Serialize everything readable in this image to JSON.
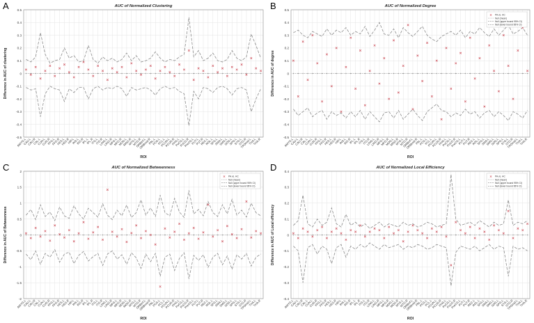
{
  "figure": {
    "roi_labels": [
      "AMYG.L",
      "CAU.L",
      "CAU.R",
      "CAL.L",
      "CUN.L",
      "CUN.R",
      "FFG.L",
      "FFG.R",
      "HES.L",
      "HES.R",
      "HIP.L",
      "INS.L",
      "INS.R",
      "IPL.L",
      "IPL.R",
      "ITG.L",
      "ITG.R",
      "LING.L",
      "LING.R",
      "MFG.L",
      "MFG.R",
      "MOG.L",
      "MOG.R",
      "MTG.L",
      "MTG.R",
      "ORBinf.L",
      "ORBmid.R",
      "PAL.L",
      "PCG.L",
      "PCL.L",
      "PCUN.L",
      "PCUN.R",
      "PHG.L",
      "PoCG.L",
      "PoCG.R",
      "PreCG.L",
      "PUT.L",
      "PUT.R",
      "REC.L",
      "ROL.L",
      "SFG.L",
      "SMA.L",
      "SMG.L",
      "SOG.L",
      "SPG.L",
      "STG.L",
      "STG.R",
      "TPOmid.L",
      "THA.L",
      "THA.R"
    ]
  },
  "chart_data": [
    {
      "panel": "A",
      "type": "line",
      "title": "AUC of Normalized Clustering",
      "xlabel": "ROI",
      "ylabel": "Difference in AUC of clustering",
      "ylim": [
        -0.5,
        0.5
      ],
      "yticks": [
        -0.5,
        -0.4,
        -0.3,
        -0.2,
        -0.1,
        0,
        0.1,
        0.2,
        0.3,
        0.4,
        0.5
      ],
      "grid": true,
      "legend": null,
      "series": [
        {
          "name": "Null (upper bound 95% CI)",
          "style": "dashed",
          "values": [
            0.11,
            0.09,
            0.13,
            0.32,
            0.15,
            0.08,
            0.1,
            0.11,
            0.2,
            0.12,
            0.14,
            0.09,
            0.1,
            0.22,
            0.11,
            0.08,
            0.13,
            0.1,
            0.12,
            0.09,
            0.11,
            0.16,
            0.1,
            0.14,
            0.09,
            0.1,
            0.12,
            0.17,
            0.12,
            0.09,
            0.11,
            0.1,
            0.13,
            0.15,
            0.44,
            0.13,
            0.18,
            0.1,
            0.12,
            0.16,
            0.1,
            0.09,
            0.11,
            0.18,
            0.12,
            0.1,
            0.13,
            0.31,
            0.22,
            0.12
          ]
        },
        {
          "name": "Null (mean)",
          "style": "dotted",
          "values": [
            0,
            0,
            0,
            0,
            0,
            0,
            0,
            0,
            0,
            0,
            0,
            0,
            0,
            0,
            0,
            0,
            0,
            0,
            0,
            0,
            0,
            0,
            0,
            0,
            0,
            0,
            0,
            0,
            0,
            0,
            0,
            0,
            0,
            0,
            0,
            0,
            0,
            0,
            0,
            0,
            0,
            0,
            0,
            0,
            0,
            0,
            0,
            0,
            0,
            0
          ]
        },
        {
          "name": "Null (lower bound 95% CI)",
          "style": "dashed",
          "values": [
            -0.11,
            -0.13,
            -0.12,
            -0.34,
            -0.16,
            -0.1,
            -0.12,
            -0.13,
            -0.22,
            -0.12,
            -0.15,
            -0.11,
            -0.11,
            -0.2,
            -0.12,
            -0.1,
            -0.13,
            -0.11,
            -0.12,
            -0.1,
            -0.12,
            -0.18,
            -0.11,
            -0.13,
            -0.12,
            -0.11,
            -0.13,
            -0.17,
            -0.12,
            -0.1,
            -0.12,
            -0.11,
            -0.14,
            -0.16,
            -0.41,
            -0.14,
            -0.2,
            -0.11,
            -0.12,
            -0.15,
            -0.11,
            -0.1,
            -0.12,
            -0.17,
            -0.12,
            -0.11,
            -0.13,
            -0.3,
            -0.2,
            -0.12
          ]
        },
        {
          "name": "PA vs. HC",
          "style": "markers",
          "values": [
            0.03,
            -0.01,
            0.05,
            -0.04,
            0.02,
            0.06,
            -0.02,
            0.04,
            0.07,
            0.01,
            -0.03,
            0.05,
            0.09,
            0.03,
            -0.02,
            0.06,
            0.02,
            -0.05,
            0.04,
            0.01,
            0.05,
            -0.03,
            0.08,
            0.02,
            -0.01,
            0.03,
            0.06,
            -0.04,
            0.02,
            0.05,
            0.01,
            -0.02,
            0.07,
            0.03,
            0.18,
            -0.05,
            0.04,
            0.02,
            -0.03,
            0.06,
            0.01,
            0.04,
            -0.02,
            0.05,
            0.03,
            0.07,
            -0.01,
            0.12,
            0.04,
            0.02
          ]
        }
      ]
    },
    {
      "panel": "B",
      "type": "line",
      "title": "AUC of Normalized Degree",
      "xlabel": "ROI",
      "ylabel": "Difference in AUC of degree",
      "ylim": [
        -0.5,
        0.5
      ],
      "yticks": [
        -0.5,
        -0.4,
        -0.3,
        -0.2,
        -0.1,
        0,
        0.1,
        0.2,
        0.3,
        0.4,
        0.5
      ],
      "grid": true,
      "legend": "top-right",
      "series": [
        {
          "name": "Null (upper bound 95% CI)",
          "style": "dashed",
          "values": [
            0.32,
            0.34,
            0.3,
            0.28,
            0.33,
            0.31,
            0.29,
            0.35,
            0.3,
            0.34,
            0.32,
            0.36,
            0.3,
            0.33,
            0.31,
            0.37,
            0.29,
            0.34,
            0.4,
            0.31,
            0.3,
            0.35,
            0.28,
            0.36,
            0.32,
            0.29,
            0.33,
            0.37,
            0.3,
            0.27,
            0.25,
            0.29,
            0.31,
            0.33,
            0.3,
            0.34,
            0.28,
            0.33,
            0.31,
            0.36,
            0.32,
            0.29,
            0.35,
            0.3,
            0.34,
            0.38,
            0.31,
            0.33,
            0.36,
            0.3
          ]
        },
        {
          "name": "Null (mean)",
          "style": "dotted",
          "values": [
            0,
            0,
            0,
            0,
            0,
            0,
            0,
            0,
            0,
            0,
            0,
            0,
            0,
            0,
            0,
            0,
            0,
            0,
            0,
            0,
            0,
            0,
            0,
            0,
            0,
            0,
            0,
            0,
            0,
            0,
            0,
            0,
            0,
            0,
            0,
            0,
            0,
            0,
            0,
            0,
            0,
            0,
            0,
            0,
            0,
            0,
            0,
            0,
            0,
            0
          ]
        },
        {
          "name": "Null (lower bound 95% CI)",
          "style": "dashed",
          "values": [
            -0.28,
            -0.33,
            -0.3,
            -0.27,
            -0.34,
            -0.31,
            -0.29,
            -0.36,
            -0.3,
            -0.33,
            -0.31,
            -0.35,
            -0.3,
            -0.34,
            -0.29,
            -0.36,
            -0.3,
            -0.34,
            -0.38,
            -0.31,
            -0.3,
            -0.35,
            -0.29,
            -0.36,
            -0.32,
            -0.28,
            -0.33,
            -0.37,
            -0.3,
            -0.27,
            -0.24,
            -0.29,
            -0.3,
            -0.34,
            -0.31,
            -0.33,
            -0.28,
            -0.32,
            -0.3,
            -0.35,
            -0.31,
            -0.29,
            -0.34,
            -0.3,
            -0.33,
            -0.37,
            -0.3,
            -0.32,
            -0.35,
            -0.29
          ]
        },
        {
          "name": "PA vs. HC",
          "style": "markers",
          "values": [
            0.1,
            -0.18,
            0.25,
            -0.05,
            0.3,
            0.08,
            -0.22,
            0.15,
            -0.1,
            0.2,
            -0.3,
            0.05,
            0.28,
            -0.12,
            0.18,
            -0.25,
            0.02,
            0.22,
            -0.08,
            0.12,
            -0.2,
            0.26,
            -0.15,
            0.06,
            0.38,
            -0.28,
            0.14,
            -0.06,
            0.24,
            -0.18,
            0.1,
            -0.36,
            0.2,
            -0.12,
            0.08,
            0.16,
            -0.22,
            0.28,
            -0.04,
            0.12,
            -0.26,
            0.22,
            0.02,
            -0.14,
            0.3,
            0.06,
            -0.2,
            0.18,
            0.36,
            0.02
          ]
        }
      ]
    },
    {
      "panel": "C",
      "type": "line",
      "title": "AUC of Normalized Betweenness",
      "xlabel": "ROI",
      "ylabel": "Difference in AUC of Betweenness",
      "ylim": [
        -2,
        2
      ],
      "yticks": [
        -2,
        -1.5,
        -1,
        -0.5,
        0,
        0.5,
        1,
        1.5,
        2
      ],
      "grid": true,
      "legend": "top-right",
      "series": [
        {
          "name": "Null (upper bound 95% CI)",
          "style": "dashed",
          "values": [
            0.62,
            0.8,
            0.48,
            0.95,
            0.58,
            0.72,
            0.45,
            0.88,
            0.6,
            0.52,
            0.92,
            0.66,
            0.5,
            0.84,
            0.7,
            0.56,
            0.98,
            0.62,
            0.48,
            0.78,
            0.6,
            0.94,
            0.55,
            0.7,
            1.1,
            0.62,
            0.85,
            0.58,
            1.25,
            0.7,
            0.6,
            1.15,
            0.72,
            0.55,
            1.4,
            0.66,
            0.8,
            0.6,
            1.05,
            0.7,
            0.58,
            0.95,
            0.66,
            1.12,
            0.62,
            0.78,
            0.56,
            1.0,
            0.7,
            0.6
          ]
        },
        {
          "name": "Null (mean)",
          "style": "dotted",
          "values": [
            0,
            0,
            0,
            0,
            0,
            0,
            0,
            0,
            0,
            0,
            0,
            0,
            0,
            0,
            0,
            0,
            0,
            0,
            0,
            0,
            0,
            0,
            0,
            0,
            0,
            0,
            0,
            0,
            0,
            0,
            0,
            0,
            0,
            0,
            0,
            0,
            0,
            0,
            0,
            0,
            0,
            0,
            0,
            0,
            0,
            0,
            0,
            0,
            0,
            0
          ]
        },
        {
          "name": "Null (lower bound 95% CI)",
          "style": "dashed",
          "values": [
            -0.6,
            -0.78,
            -0.5,
            -0.92,
            -0.58,
            -0.7,
            -0.46,
            -0.86,
            -0.6,
            -0.54,
            -0.9,
            -0.64,
            -0.52,
            -0.82,
            -0.68,
            -0.58,
            -0.96,
            -0.6,
            -0.5,
            -0.76,
            -0.62,
            -0.92,
            -0.56,
            -0.72,
            -1.05,
            -0.6,
            -0.84,
            -0.58,
            -1.3,
            -0.7,
            -0.6,
            -1.12,
            -0.74,
            -0.56,
            -1.38,
            -0.64,
            -0.8,
            -0.62,
            -1.02,
            -0.7,
            -0.58,
            -0.94,
            -0.66,
            -1.08,
            -0.62,
            -0.76,
            -0.58,
            -0.98,
            -0.7,
            -0.6
          ]
        },
        {
          "name": "PA vs. HC",
          "style": "markers",
          "values": [
            0.05,
            -0.1,
            0.22,
            -0.05,
            0.12,
            -0.18,
            0.3,
            0.02,
            -0.08,
            0.15,
            -0.2,
            0.05,
            0.4,
            -0.12,
            0.08,
            0.25,
            -0.15,
            1.42,
            0.1,
            -0.05,
            0.18,
            -0.22,
            0.06,
            0.3,
            -0.1,
            0.12,
            0.0,
            -0.3,
            -1.62,
            0.2,
            -0.08,
            0.1,
            0.35,
            -0.15,
            0.05,
            0.22,
            -0.12,
            0.08,
            0.95,
            -0.05,
            0.15,
            -0.2,
            0.28,
            0.02,
            -0.1,
            0.18,
            1.05,
            -0.08,
            0.12,
            0.05
          ]
        }
      ]
    },
    {
      "panel": "D",
      "type": "line",
      "title": "AUC of Normalized Local Efficiency",
      "xlabel": "ROI",
      "ylabel": "Difference in AUC of Local efficiency",
      "ylim": [
        -0.4,
        0.4
      ],
      "yticks": [
        -0.4,
        -0.3,
        -0.2,
        -0.1,
        0,
        0.1,
        0.2,
        0.3,
        0.4
      ],
      "grid": true,
      "legend": "top-right",
      "series": [
        {
          "name": "Null (upper bound 95% CI)",
          "style": "dashed",
          "values": [
            0.06,
            0.09,
            0.25,
            0.07,
            0.05,
            0.1,
            0.06,
            0.08,
            0.17,
            0.07,
            0.05,
            0.13,
            0.06,
            0.08,
            0.05,
            0.07,
            0.04,
            0.06,
            0.08,
            0.05,
            0.07,
            0.06,
            0.05,
            0.08,
            0.06,
            0.07,
            0.05,
            0.06,
            0.08,
            0.07,
            0.05,
            0.06,
            0.07,
            0.38,
            0.1,
            0.06,
            0.07,
            0.08,
            0.06,
            0.09,
            0.07,
            0.05,
            0.08,
            0.06,
            0.07,
            0.22,
            0.06,
            0.08,
            0.07,
            0.09
          ]
        },
        {
          "name": "Null (mean)",
          "style": "dotted",
          "values": [
            0,
            0,
            0,
            0,
            0,
            0,
            0,
            0,
            0,
            0,
            0,
            0,
            0,
            0,
            0,
            0,
            0,
            0,
            0,
            0,
            0,
            0,
            0,
            0,
            0,
            0,
            0,
            0,
            0,
            0,
            0,
            0,
            0,
            0,
            0,
            0,
            0,
            0,
            0,
            0,
            0,
            0,
            0,
            0,
            0,
            0,
            0,
            0,
            0,
            0
          ]
        },
        {
          "name": "Null (lower bound 95% CI)",
          "style": "dashed",
          "values": [
            -0.07,
            -0.1,
            -0.3,
            -0.08,
            -0.06,
            -0.12,
            -0.07,
            -0.09,
            -0.18,
            -0.08,
            -0.06,
            -0.14,
            -0.07,
            -0.09,
            -0.06,
            -0.08,
            -0.05,
            -0.07,
            -0.09,
            -0.06,
            -0.08,
            -0.07,
            -0.06,
            -0.09,
            -0.07,
            -0.08,
            -0.06,
            -0.07,
            -0.09,
            -0.08,
            -0.06,
            -0.07,
            -0.08,
            -0.32,
            -0.11,
            -0.07,
            -0.08,
            -0.09,
            -0.07,
            -0.1,
            -0.08,
            -0.06,
            -0.09,
            -0.07,
            -0.08,
            -0.26,
            -0.07,
            -0.09,
            -0.08,
            -0.1
          ]
        },
        {
          "name": "PA vs. HC",
          "style": "markers",
          "values": [
            0.01,
            -0.02,
            0.04,
            0.02,
            -0.01,
            0.03,
            0.05,
            -0.02,
            0.02,
            0.04,
            0.01,
            -0.03,
            0.03,
            0.02,
            0.06,
            -0.01,
            0.02,
            0.04,
            0.03,
            -0.02,
            0.05,
            0.01,
            0.03,
            -0.04,
            0.02,
            0.06,
            0.03,
            0.01,
            -0.02,
            0.04,
            0.02,
            0.05,
            -0.01,
            -0.19,
            0.08,
            0.03,
            0.01,
            0.05,
            -0.02,
            0.04,
            0.02,
            -0.03,
            0.06,
            0.03,
            0.01,
            0.15,
            -0.02,
            0.04,
            0.03,
            0.07
          ]
        }
      ]
    }
  ]
}
